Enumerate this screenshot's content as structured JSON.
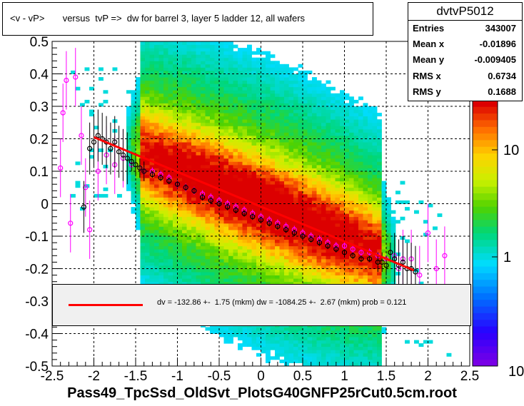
{
  "title": "<v - vP>       versus  tvP =>  dw for barrel 3, layer 5 ladder 12, all wafers",
  "stats": {
    "name": "dvtvP5012",
    "rows": [
      {
        "label": "Entries",
        "value": "343007"
      },
      {
        "label": "Mean x",
        "value": "-0.01896"
      },
      {
        "label": "Mean y",
        "value": "-0.009405"
      },
      {
        "label": "RMS x",
        "value": "0.6734"
      },
      {
        "label": "RMS y",
        "value": "0.1688"
      }
    ]
  },
  "fit_text": "dv = -132.86 +-  1.75 (mkm) dw = -1084.25 +-  2.67 (mkm) prob = 0.121",
  "x_title": "Pass49_TpcSsd_OldSvt_PlotsG40GNFP25rCut0.5cm.root",
  "colors": {
    "fit_line": "#ff0000",
    "profile_black": "#000000",
    "profile_magenta": "#ff00ff",
    "fit_box": "#f0f0f0"
  },
  "chart_data": {
    "type": "heatmap",
    "xlim": [
      -2.5,
      2.5
    ],
    "ylim": [
      -0.5,
      0.5
    ],
    "x_ticks": [
      "-2.5",
      "-2",
      "-1.5",
      "-1",
      "-0.5",
      "0",
      "0.5",
      "1",
      "1.5",
      "2",
      "2.5"
    ],
    "y_ticks": [
      "-0.5",
      "-0.4",
      "-0.3",
      "-0.2",
      "-0.1",
      "0",
      "0.1",
      "0.2",
      "0.3",
      "0.4",
      "0.5"
    ],
    "z_scale": "log",
    "z_ticks": [
      "1",
      "10"
    ],
    "z_ticks_extra": [
      "10"
    ],
    "grid": true,
    "fit_line": {
      "x": [
        -2.0,
        1.83
      ],
      "y": [
        0.205,
        -0.205
      ]
    },
    "profile_black": {
      "x": [
        -2.12,
        -2.05,
        -2.0,
        -1.95,
        -1.9,
        -1.85,
        -1.8,
        -1.75,
        -1.7,
        -1.65,
        -1.6,
        -1.55,
        -1.5,
        -1.45,
        -1.4,
        -1.3,
        -1.2,
        -1.1,
        -1.0,
        -0.9,
        -0.8,
        -0.7,
        -0.6,
        -0.5,
        -0.4,
        -0.3,
        -0.2,
        -0.1,
        0.0,
        0.1,
        0.2,
        0.3,
        0.4,
        0.5,
        0.6,
        0.7,
        0.8,
        0.9,
        1.0,
        1.1,
        1.2,
        1.3,
        1.4,
        1.45,
        1.5,
        1.55,
        1.6,
        1.65,
        1.7,
        1.75,
        1.8,
        1.85
      ],
      "y": [
        -0.01,
        0.17,
        0.19,
        0.21,
        0.2,
        0.19,
        0.17,
        0.19,
        0.16,
        0.15,
        0.14,
        0.13,
        0.12,
        0.11,
        0.1,
        0.09,
        0.08,
        0.07,
        0.06,
        0.05,
        0.04,
        0.02,
        0.01,
        0.0,
        -0.01,
        -0.02,
        -0.03,
        -0.04,
        -0.05,
        -0.06,
        -0.07,
        -0.08,
        -0.09,
        -0.1,
        -0.11,
        -0.12,
        -0.13,
        -0.14,
        -0.15,
        -0.16,
        -0.17,
        -0.17,
        -0.18,
        -0.18,
        -0.19,
        -0.15,
        -0.17,
        -0.19,
        -0.18,
        -0.2,
        -0.2,
        -0.21
      ]
    },
    "profile_magenta": {
      "x": [
        -2.4,
        -2.37,
        -2.33,
        -2.28,
        -2.22,
        -2.15,
        -2.1,
        -2.05,
        -1.95,
        -1.85,
        -1.75,
        -1.65,
        -1.55,
        -1.45,
        -1.4,
        -1.3,
        -1.2,
        -1.1,
        -1.0,
        -0.9,
        -0.8,
        -0.7,
        -0.6,
        -0.5,
        -0.4,
        -0.3,
        -0.2,
        -0.1,
        0.0,
        0.1,
        0.2,
        0.3,
        0.4,
        0.5,
        0.6,
        0.7,
        0.8,
        0.9,
        1.0,
        1.1,
        1.2,
        1.3,
        1.4,
        1.5,
        1.6,
        1.65,
        1.7,
        1.8,
        1.9,
        2.0,
        2.1,
        2.2
      ],
      "y": [
        0.11,
        0.28,
        0.38,
        -0.06,
        0.39,
        0.21,
        0.05,
        -0.08,
        0.1,
        0.15,
        0.12,
        0.14,
        0.12,
        0.11,
        0.1,
        0.1,
        0.09,
        0.08,
        0.06,
        0.05,
        0.04,
        0.03,
        0.02,
        0.01,
        0.0,
        -0.01,
        -0.02,
        -0.03,
        -0.04,
        -0.05,
        -0.06,
        -0.07,
        -0.08,
        -0.09,
        -0.1,
        -0.11,
        -0.12,
        -0.13,
        -0.13,
        -0.14,
        -0.15,
        -0.15,
        -0.16,
        -0.17,
        -0.16,
        -0.2,
        -0.17,
        -0.17,
        -0.22,
        -0.09,
        -0.2,
        -0.16
      ]
    }
  }
}
